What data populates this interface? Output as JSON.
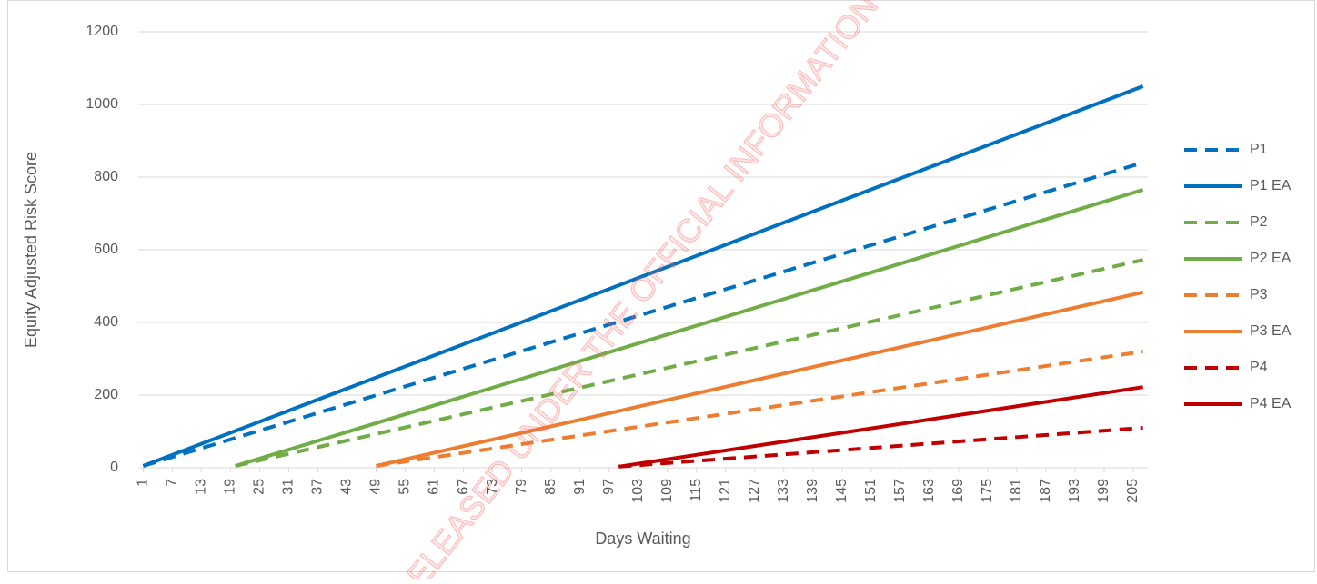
{
  "chart_data": {
    "type": "line",
    "watermark": "RELEASED UNDER THE OFFICIAL INFORMATION ACT",
    "x_label": "Days Waiting",
    "y_label": "Equity Adjusted Risk Score",
    "xlim": [
      0,
      208
    ],
    "xticks": [
      1,
      7,
      13,
      19,
      25,
      31,
      37,
      43,
      49,
      55,
      61,
      67,
      73,
      79,
      85,
      91,
      97,
      103,
      109,
      115,
      121,
      127,
      133,
      139,
      145,
      151,
      157,
      163,
      169,
      175,
      181,
      187,
      193,
      199,
      205
    ],
    "ylim": [
      0,
      1200
    ],
    "yticks": [
      0,
      200,
      400,
      600,
      800,
      1000,
      1200
    ],
    "grid": true,
    "legend": "right",
    "series": [
      {
        "name": "P1",
        "color": "#0070c0",
        "style": "dashed",
        "x": [
          1,
          207
        ],
        "values": [
          5,
          840
        ]
      },
      {
        "name": "P1 EA",
        "color": "#0070c0",
        "style": "solid",
        "x": [
          1,
          207
        ],
        "values": [
          5,
          1050
        ]
      },
      {
        "name": "P2",
        "color": "#70ad47",
        "style": "dashed",
        "x": [
          20,
          207
        ],
        "values": [
          5,
          572
        ]
      },
      {
        "name": "P2 EA",
        "color": "#70ad47",
        "style": "solid",
        "x": [
          20,
          207
        ],
        "values": [
          5,
          765
        ]
      },
      {
        "name": "P3",
        "color": "#ed7d31",
        "style": "dashed",
        "x": [
          49,
          207
        ],
        "values": [
          5,
          320
        ]
      },
      {
        "name": "P3 EA",
        "color": "#ed7d31",
        "style": "solid",
        "x": [
          49,
          207
        ],
        "values": [
          5,
          483
        ]
      },
      {
        "name": "P4",
        "color": "#c00000",
        "style": "dashed",
        "x": [
          99,
          207
        ],
        "values": [
          3,
          110
        ]
      },
      {
        "name": "P4 EA",
        "color": "#c00000",
        "style": "solid",
        "x": [
          99,
          207
        ],
        "values": [
          3,
          222
        ]
      }
    ]
  }
}
